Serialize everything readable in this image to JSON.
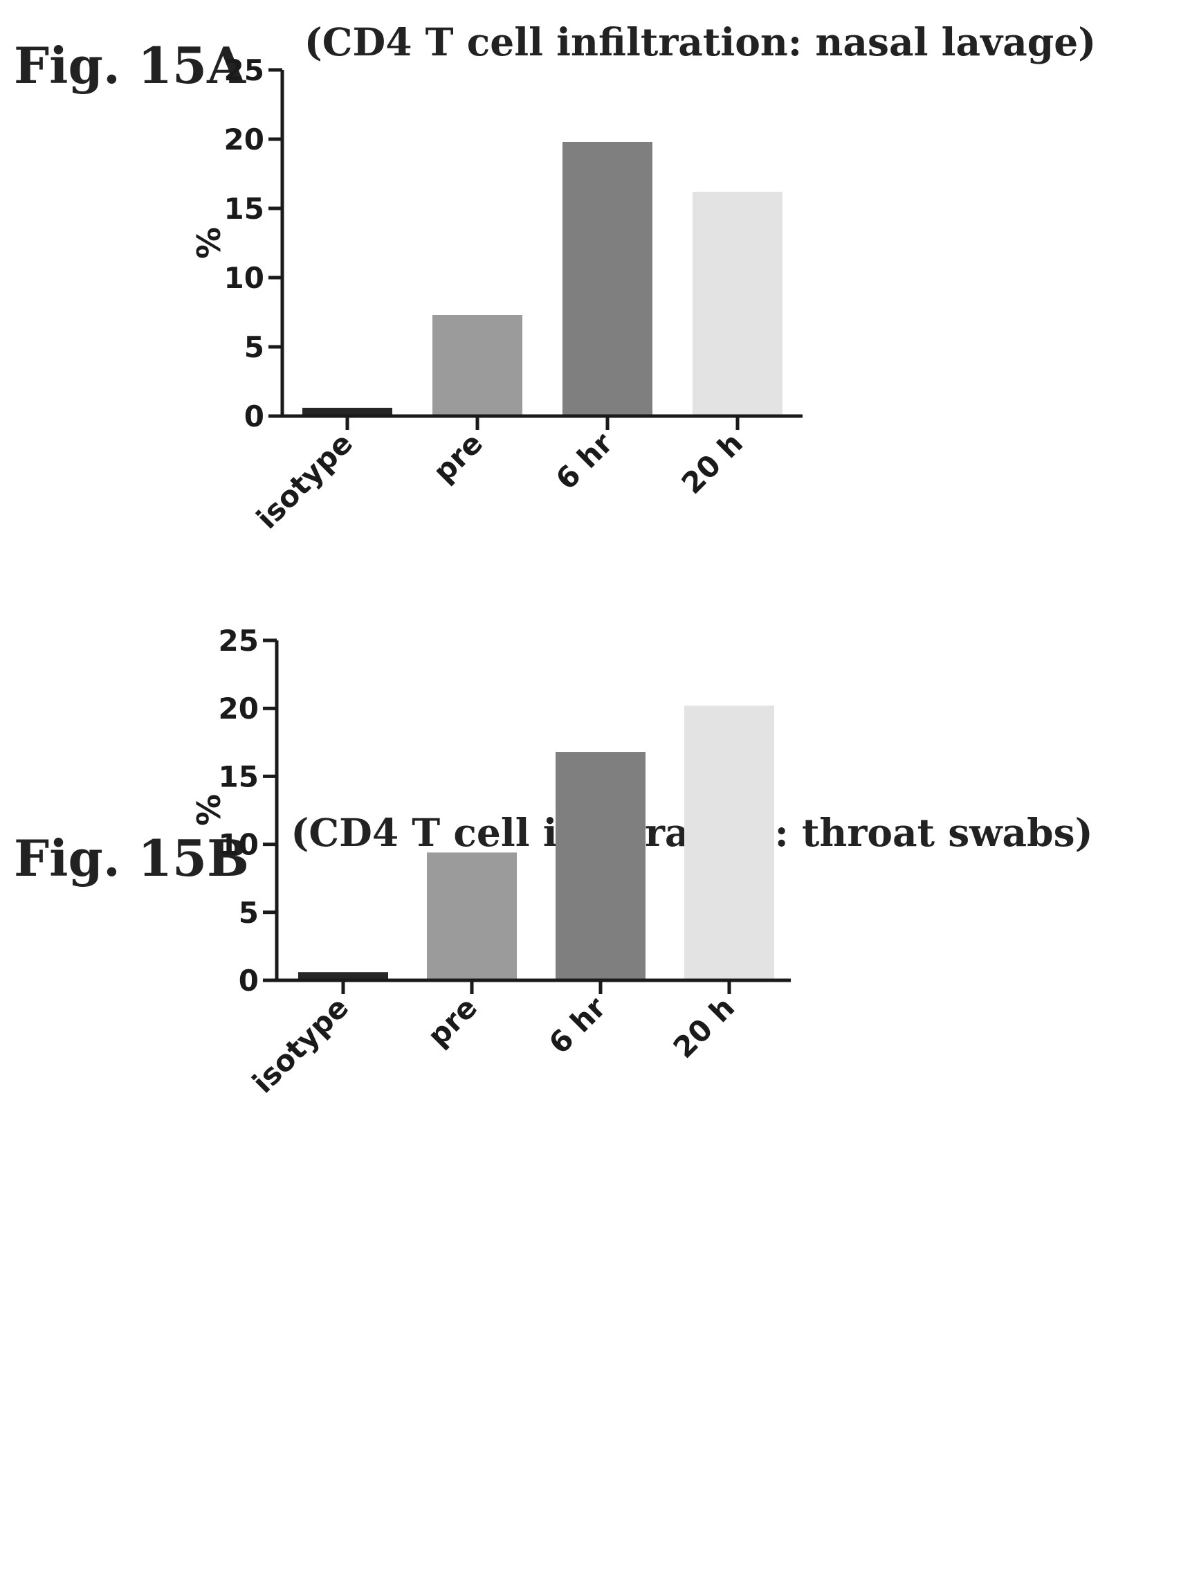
{
  "colors": {
    "axis": "#1a1a1a",
    "bar_isotype": "#262626",
    "bar_pre": "#9b9b9b",
    "bar_6hr": "#7f7f7f",
    "bar_20h": "#e3e3e3"
  },
  "figures": [
    {
      "fig_label": "Fig. 15A",
      "title": "(CD4 T cell infiltration: nasal lavage)"
    },
    {
      "fig_label": "Fig. 15B",
      "title": "(CD4 T cell infiltration: throat swabs)"
    }
  ],
  "chart_data": [
    {
      "type": "bar",
      "title": "(CD4 T cell infiltration: nasal lavage)",
      "categories": [
        "isotype",
        "pre",
        "6 hr",
        "20 h"
      ],
      "values": [
        0.6,
        7.3,
        19.8,
        16.2
      ],
      "xlabel": "",
      "ylabel": "%",
      "ylim": [
        0,
        25
      ],
      "yticks": [
        0,
        5,
        10,
        15,
        20,
        25
      ],
      "grid": false,
      "legend": "none"
    },
    {
      "type": "bar",
      "title": "(CD4 T cell infiltration: throat swabs)",
      "categories": [
        "isotype",
        "pre",
        "6 hr",
        "20 h"
      ],
      "values": [
        0.6,
        9.4,
        16.8,
        20.2
      ],
      "xlabel": "",
      "ylabel": "%",
      "ylim": [
        0,
        25
      ],
      "yticks": [
        0,
        5,
        10,
        15,
        20,
        25
      ],
      "grid": false,
      "legend": "none"
    }
  ]
}
